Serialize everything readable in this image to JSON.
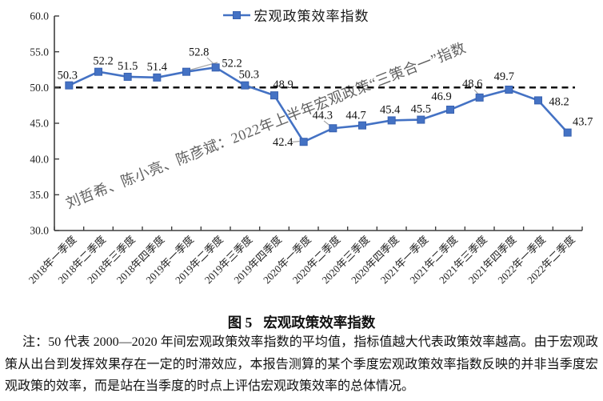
{
  "legend": {
    "label": "宏观政策效率指数"
  },
  "watermark": {
    "text": "刘哲希、陈小亮、陈彦斌：2022年上半年宏观政策“三策合一”指数"
  },
  "caption": {
    "figure_label": "图 5",
    "figure_title": "宏观政策效率指数"
  },
  "note": {
    "text": "注：50 代表 2000—2020 年间宏观政策效率指数的平均值，指标值越大代表政策效率越高。由于宏观政策从出台到发挥效果存在一定的时滞效应，本报告测算的某个季度宏观政策效率指数反映的并非当季度宏观政策的效率，而是站在当季度的时点上评估宏观政策效率的总体情况。"
  },
  "chart_data": {
    "type": "line",
    "title": "宏观政策效率指数",
    "categories": [
      "2018年一季度",
      "2018年二季度",
      "2018年三季度",
      "2018年四季度",
      "2019年一季度",
      "2019年二季度",
      "2019年三季度",
      "2019年四季度",
      "2020年一季度",
      "2020年二季度",
      "2020年三季度",
      "2020年四季度",
      "2021年一季度",
      "2021年二季度",
      "2021年三季度",
      "2021年四季度",
      "2022年一季度",
      "2022年二季度"
    ],
    "series": [
      {
        "name": "宏观政策效率指数",
        "values": [
          50.3,
          52.2,
          51.5,
          51.4,
          52.2,
          52.8,
          50.3,
          48.9,
          42.4,
          44.3,
          44.7,
          45.4,
          45.5,
          46.9,
          48.6,
          49.7,
          48.2,
          43.7
        ]
      }
    ],
    "data_labels_visible": true,
    "baseline": 50.0,
    "baseline_style": "dashed-black",
    "ylim": [
      30.0,
      60.0
    ],
    "ytick_values": [
      60,
      55,
      50,
      45,
      40,
      35,
      30
    ],
    "ytick_labels": [
      "60.0",
      "55.0",
      "50.0",
      "45.0",
      "40.0",
      "35.0",
      "30.0"
    ],
    "xlabel": "",
    "ylabel": "",
    "legend_position": "top-center",
    "grid": false,
    "marker": "square"
  },
  "colors": {
    "series_line": "#4472C4",
    "marker_fill": "#4472C4",
    "marker_border": "#3861B0",
    "baseline": "#000000",
    "leader_line": "#A6A6A6",
    "axis": "#3F3F3F",
    "watermark_text": "#525252"
  }
}
